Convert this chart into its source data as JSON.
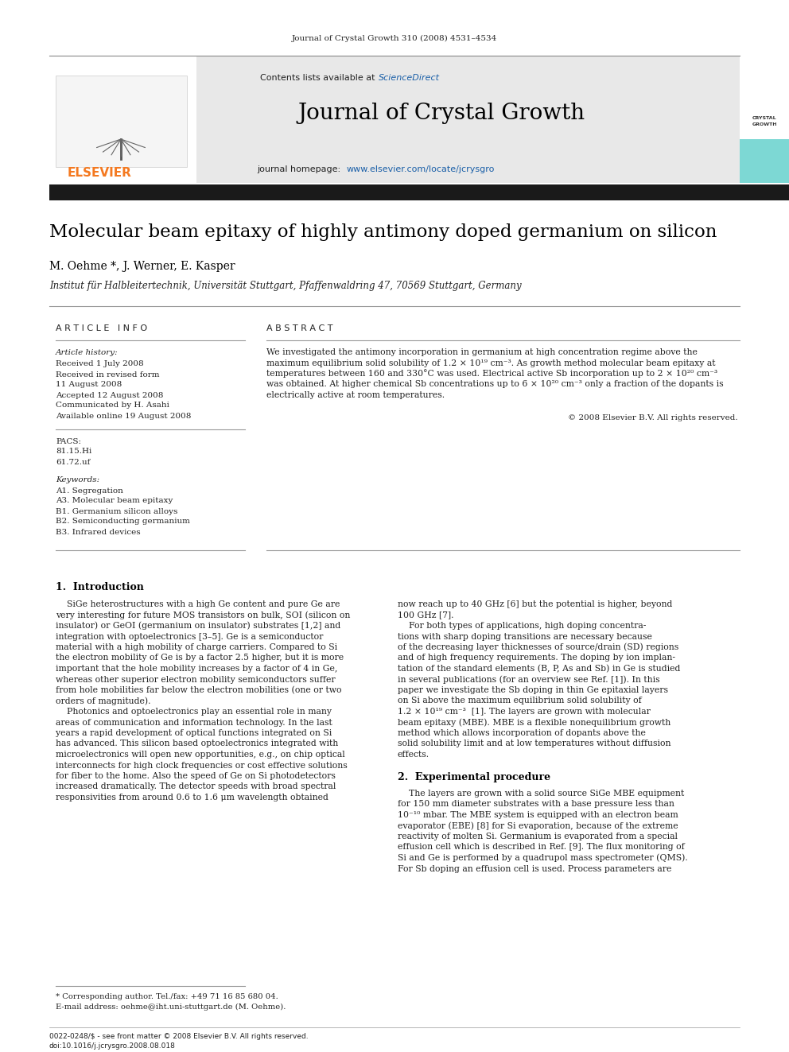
{
  "journal_ref": "Journal of Crystal Growth 310 (2008) 4531–4534",
  "journal_title": "Journal of Crystal Growth",
  "contents_text": "Contents lists available at ",
  "science_direct": "ScienceDirect",
  "homepage_text": "journal homepage: ",
  "homepage_url": "www.elsevier.com/locate/jcrysgro",
  "paper_title": "Molecular beam epitaxy of highly antimony doped germanium on silicon",
  "authors": "M. Oehme *, J. Werner, E. Kasper",
  "affiliation": "Institut für Halbleitertechnik, Universität Stuttgart, Pfaffenwaldring 47, 70569 Stuttgart, Germany",
  "article_info_header": "A R T I C L E   I N F O",
  "abstract_header": "A B S T R A C T",
  "article_history_label": "Article history:",
  "received1": "Received 1 July 2008",
  "received_revised": "Received in revised form",
  "revised_date": "11 August 2008",
  "accepted": "Accepted 12 August 2008",
  "communicated": "Communicated by H. Asahi",
  "available_online": "Available online 19 August 2008",
  "pacs_label": "PACS:",
  "pacs1": "81.15.Hi",
  "pacs2": "61.72.uf",
  "keywords_label": "Keywords:",
  "kw1": "A1. Segregation",
  "kw2": "A3. Molecular beam epitaxy",
  "kw3": "B1. Germanium silicon alloys",
  "kw4": "B2. Semiconducting germanium",
  "kw5": "B3. Infrared devices",
  "copyright": "© 2008 Elsevier B.V. All rights reserved.",
  "section1_title": "1.  Introduction",
  "section2_title": "2.  Experimental procedure",
  "footnote_star": "* Corresponding author. Tel./fax: +49 71 16 85 680 04.",
  "footnote_email": "E-mail address: oehme@iht.uni-stuttgart.de (M. Oehme).",
  "footer_issn": "0022-0248/$ - see front matter © 2008 Elsevier B.V. All rights reserved.",
  "footer_doi": "doi:10.1016/j.jcrysgro.2008.08.018",
  "bg_color": "#ffffff",
  "header_bg": "#e8e8e8",
  "elsevier_orange": "#f47920",
  "science_direct_color": "#1a5fa8",
  "url_color": "#1a5fa8",
  "crystal_growth_bg": "#7dd8d4",
  "black": "#000000",
  "dark_gray": "#222222",
  "abstract_lines": [
    "We investigated the antimony incorporation in germanium at high concentration regime above the",
    "maximum equilibrium solid solubility of 1.2 × 10¹⁹ cm⁻³. As growth method molecular beam epitaxy at",
    "temperatures between 160 and 330°C was used. Electrical active Sb incorporation up to 2 × 10²⁰ cm⁻³",
    "was obtained. At higher chemical Sb concentrations up to 6 × 10²⁰ cm⁻³ only a fraction of the dopants is",
    "electrically active at room temperatures."
  ],
  "intro_col1": [
    "    SiGe heterostructures with a high Ge content and pure Ge are",
    "very interesting for future MOS transistors on bulk, SOI (silicon on",
    "insulator) or GeOI (germanium on insulator) substrates [1,2] and",
    "integration with optoelectronics [3–5]. Ge is a semiconductor",
    "material with a high mobility of charge carriers. Compared to Si",
    "the electron mobility of Ge is by a factor 2.5 higher, but it is more",
    "important that the hole mobility increases by a factor of 4 in Ge,",
    "whereas other superior electron mobility semiconductors suffer",
    "from hole mobilities far below the electron mobilities (one or two",
    "orders of magnitude).",
    "    Photonics and optoelectronics play an essential role in many",
    "areas of communication and information technology. In the last",
    "years a rapid development of optical functions integrated on Si",
    "has advanced. This silicon based optoelectronics integrated with",
    "microelectronics will open new opportunities, e.g., on chip optical",
    "interconnects for high clock frequencies or cost effective solutions",
    "for fiber to the home. Also the speed of Ge on Si photodetectors",
    "increased dramatically. The detector speeds with broad spectral",
    "responsivities from around 0.6 to 1.6 μm wavelength obtained"
  ],
  "intro_col2": [
    "now reach up to 40 GHz [6] but the potential is higher, beyond",
    "100 GHz [7].",
    "    For both types of applications, high doping concentra-",
    "tions with sharp doping transitions are necessary because",
    "of the decreasing layer thicknesses of source/drain (SD) regions",
    "and of high frequency requirements. The doping by ion implan-",
    "tation of the standard elements (B, P, As and Sb) in Ge is studied",
    "in several publications (for an overview see Ref. [1]). In this",
    "paper we investigate the Sb doping in thin Ge epitaxial layers",
    "on Si above the maximum equilibrium solid solubility of",
    "1.2 × 10¹⁹ cm⁻³  [1]. The layers are grown with molecular",
    "beam epitaxy (MBE). MBE is a flexible nonequilibrium growth",
    "method which allows incorporation of dopants above the",
    "solid solubility limit and at low temperatures without diffusion",
    "effects."
  ],
  "sec2_col2": [
    "    The layers are grown with a solid source SiGe MBE equipment",
    "for 150 mm diameter substrates with a base pressure less than",
    "10⁻¹⁰ mbar. The MBE system is equipped with an electron beam",
    "evaporator (EBE) [8] for Si evaporation, because of the extreme",
    "reactivity of molten Si. Germanium is evaporated from a special",
    "effusion cell which is described in Ref. [9]. The flux monitoring of",
    "Si and Ge is performed by a quadrupol mass spectrometer (QMS).",
    "For Sb doping an effusion cell is used. Process parameters are"
  ]
}
